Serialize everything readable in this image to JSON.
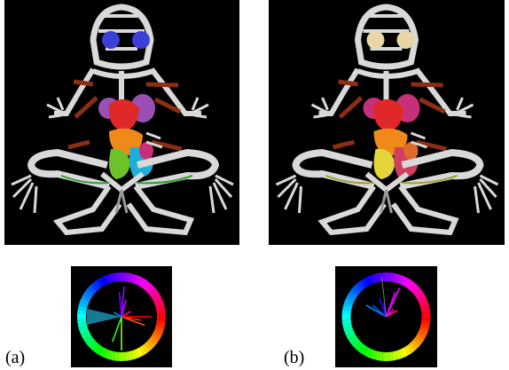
{
  "figure": {
    "panels": [
      {
        "caption": "(a)",
        "organ_colors": {
          "eyes": "#3d3fd6",
          "heart": "#e02828",
          "lungs": "#9a4fb5",
          "liver": "#ef8a1a",
          "intestine_left": "#6cc226",
          "intestine_right": "#1faed8",
          "stomach": "#c6307a",
          "vessels": "#8b2e14",
          "nerves": "#2f9a2f",
          "bone": "#d9d9d9"
        },
        "wheel_style": "filled"
      },
      {
        "caption": "(b)",
        "organ_colors": {
          "eyes": "#e8d6a6",
          "heart": "#e02828",
          "lungs": "#c6307a",
          "liver": "#ef8a1a",
          "intestine_left": "#e3d43a",
          "intestine_right": "#cf3f62",
          "stomach": "#e06a2a",
          "vessels": "#8b2e14",
          "nerves": "#9aa12a",
          "bone": "#d9d9d9"
        },
        "wheel_style": "ring"
      }
    ]
  }
}
